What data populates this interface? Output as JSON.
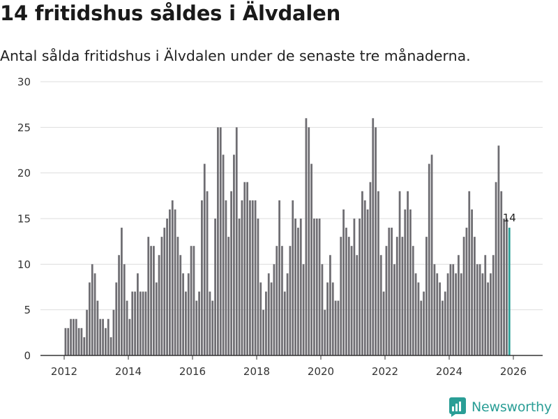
{
  "title": "14 fritidshus såldes i Älvdalen",
  "subtitle": "Antal sålda fritidshus i Älvdalen under de senaste tre månaderna.",
  "brand": {
    "name": "Newsworthy",
    "color": "#2a9e96"
  },
  "colors": {
    "bar": "#6e6d72",
    "highlight": "#2a9e96",
    "grid": "#dddddd",
    "axis": "#333333"
  },
  "chart_data": {
    "type": "bar",
    "title": "14 fritidshus såldes i Älvdalen",
    "xlabel": "",
    "ylabel": "",
    "ylim": [
      0,
      30
    ],
    "yticks": [
      "0",
      "5",
      "10",
      "15",
      "20",
      "25",
      "30"
    ],
    "xticks": [
      "2012",
      "2014",
      "2016",
      "2018",
      "2020",
      "2022",
      "2024",
      "2026"
    ],
    "start": "2012-01",
    "frequency": "monthly",
    "values": [
      3,
      3,
      4,
      4,
      4,
      3,
      3,
      2,
      5,
      8,
      10,
      9,
      6,
      4,
      4,
      3,
      4,
      2,
      5,
      8,
      11,
      14,
      10,
      6,
      4,
      7,
      7,
      9,
      7,
      7,
      7,
      13,
      12,
      12,
      8,
      11,
      13,
      14,
      15,
      16,
      17,
      16,
      13,
      11,
      9,
      7,
      9,
      12,
      12,
      6,
      7,
      17,
      21,
      18,
      7,
      6,
      15,
      25,
      25,
      22,
      17,
      13,
      18,
      22,
      25,
      15,
      17,
      19,
      19,
      17,
      17,
      17,
      15,
      8,
      5,
      7,
      9,
      8,
      10,
      12,
      17,
      12,
      7,
      9,
      12,
      17,
      15,
      14,
      15,
      10,
      26,
      25,
      21,
      15,
      15,
      15,
      10,
      5,
      8,
      11,
      8,
      6,
      6,
      13,
      16,
      14,
      13,
      12,
      15,
      11,
      15,
      18,
      17,
      16,
      19,
      26,
      25,
      18,
      11,
      7,
      12,
      14,
      14,
      10,
      13,
      18,
      13,
      16,
      18,
      16,
      12,
      9,
      8,
      6,
      7,
      13,
      21,
      22,
      10,
      9,
      8,
      6,
      7,
      9,
      10,
      10,
      9,
      11,
      9,
      13,
      14,
      18,
      16,
      13,
      10,
      10,
      9,
      11,
      8,
      9,
      11,
      19,
      23,
      18,
      15,
      15,
      14
    ],
    "highlight_label": "14"
  }
}
